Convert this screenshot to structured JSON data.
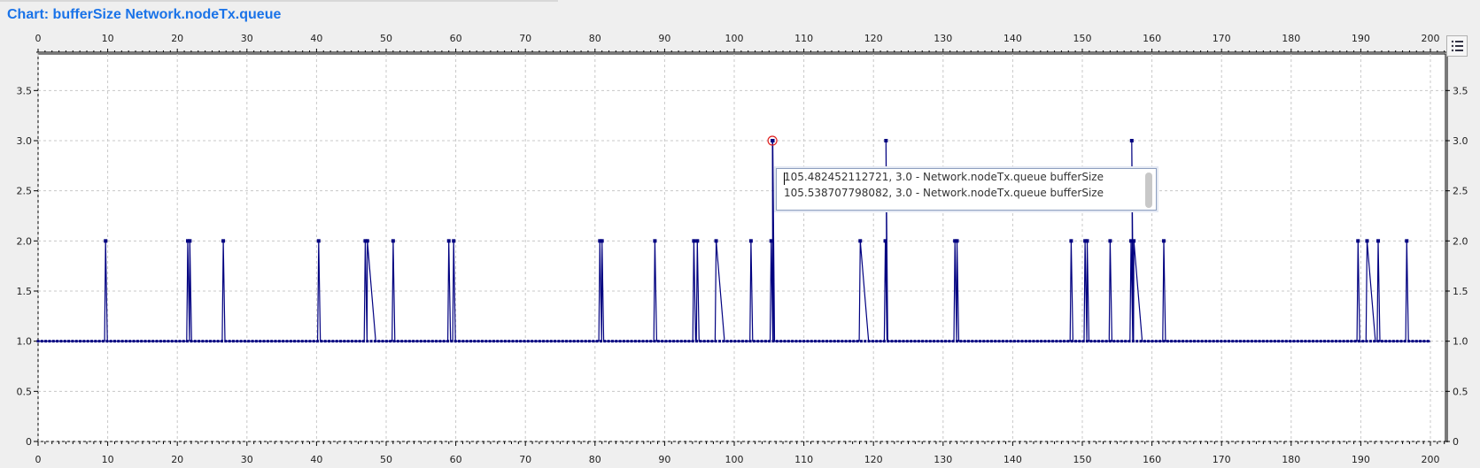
{
  "header": {
    "title": "Chart: bufferSize Network.nodeTx.queue"
  },
  "tooltip": {
    "lines": [
      "105.482452112721, 3.0 - Network.nodeTx.queue bufferSize",
      "105.538707798082, 3.0 - Network.nodeTx.queue bufferSize"
    ]
  },
  "icons": {
    "legend": "legend-list-icon"
  },
  "colors": {
    "series": "#000080",
    "grid": "#c8c8c8",
    "highlight": "#e02020"
  },
  "chart_data": {
    "type": "line",
    "title": "",
    "xlabel": "",
    "ylabel": "",
    "xlim": [
      0,
      202
    ],
    "ylim": [
      0,
      4
    ],
    "xticks": [
      0,
      10,
      20,
      30,
      40,
      50,
      60,
      70,
      80,
      90,
      100,
      110,
      120,
      130,
      140,
      150,
      160,
      170,
      180,
      190,
      200
    ],
    "yticks": [
      0,
      0.5,
      1.0,
      1.5,
      2.0,
      2.5,
      3.0,
      3.5
    ],
    "ytick_labels": [
      "0",
      "0.5",
      "1.0",
      "1.5",
      "2.0",
      "2.5",
      "3.0",
      "3.5"
    ],
    "grid": true,
    "baseline": 1.0,
    "series": [
      {
        "name": "Network.nodeTx.queue bufferSize",
        "spikes": [
          [
            9.7,
            2
          ],
          [
            21.5,
            2
          ],
          [
            21.8,
            2
          ],
          [
            26.6,
            2
          ],
          [
            40.3,
            2
          ],
          [
            47,
            2
          ],
          [
            47.3,
            2
          ],
          [
            51,
            2
          ],
          [
            59,
            2
          ],
          [
            59.7,
            2
          ],
          [
            80.7,
            2
          ],
          [
            81,
            2
          ],
          [
            88.6,
            2
          ],
          [
            94.2,
            2
          ],
          [
            94.7,
            2
          ],
          [
            97.4,
            2
          ],
          [
            102.4,
            2
          ],
          [
            105.3,
            2
          ],
          [
            105.48,
            3
          ],
          [
            105.54,
            3
          ],
          [
            118.1,
            2
          ],
          [
            121.7,
            2
          ],
          [
            121.8,
            3
          ],
          [
            131.7,
            2
          ],
          [
            132,
            2
          ],
          [
            148.4,
            2
          ],
          [
            150.4,
            2
          ],
          [
            150.7,
            2
          ],
          [
            154,
            2
          ],
          [
            157,
            2
          ],
          [
            157.1,
            3
          ],
          [
            157.4,
            2
          ],
          [
            161.7,
            2
          ],
          [
            189.6,
            2
          ],
          [
            190.9,
            2
          ],
          [
            192.5,
            2
          ],
          [
            196.6,
            2
          ]
        ],
        "highlight": [
          105.48,
          3.0
        ]
      }
    ]
  }
}
